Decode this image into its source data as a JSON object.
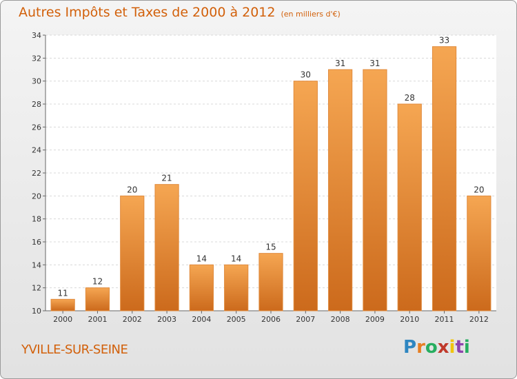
{
  "title": "Autres Impôts et Taxes de 2000 à 2012",
  "subtitle": "(en milliers d'€)",
  "city": "YVILLE-SUR-SEINE",
  "brand": {
    "letters": [
      "P",
      "r",
      "o",
      "x",
      "i",
      "t",
      "i"
    ],
    "colors": [
      "#2e86c1",
      "#e67e22",
      "#27ae60",
      "#c0392b",
      "#f1c40f",
      "#8e44ad",
      "#27ae60"
    ]
  },
  "colors": {
    "accent": "#d2600a",
    "bar_top": "#f5a652",
    "bar_bottom": "#cc6a1c"
  },
  "chart_data": {
    "type": "bar",
    "categories": [
      "2000",
      "2001",
      "2002",
      "2003",
      "2004",
      "2005",
      "2006",
      "2007",
      "2008",
      "2009",
      "2010",
      "2011",
      "2012"
    ],
    "values": [
      11,
      12,
      20,
      21,
      14,
      14,
      15,
      30,
      31,
      31,
      28,
      33,
      20
    ],
    "ylim": [
      10,
      34
    ],
    "yticks": [
      10,
      12,
      14,
      16,
      18,
      20,
      22,
      24,
      26,
      28,
      30,
      32,
      34
    ],
    "xlabel": "",
    "ylabel": "",
    "grid": true
  }
}
